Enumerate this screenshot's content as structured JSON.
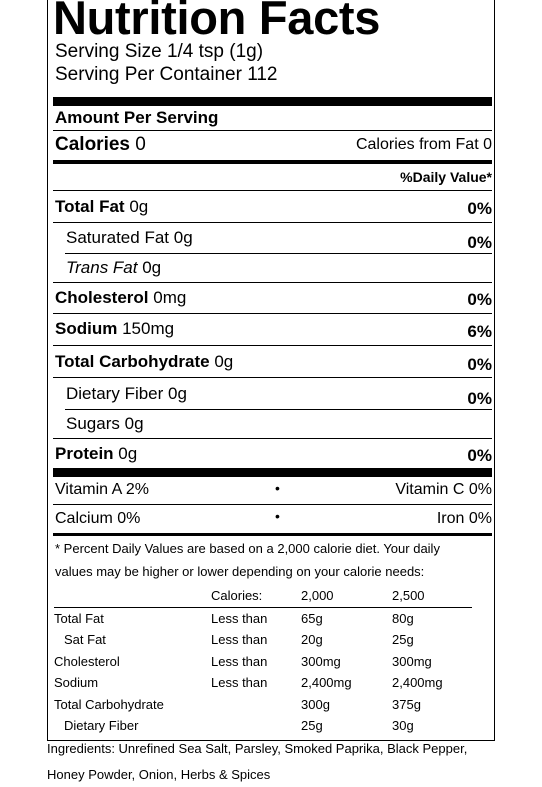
{
  "label": {
    "title": "Nutrition Facts",
    "serving_size": "Serving Size 1/4 tsp (1g)",
    "servings_per_container": "Serving Per Container 112",
    "amount_per_serving": "Amount Per Serving",
    "calories_label": "Calories",
    "calories_value": "0",
    "calories_from_fat": "Calories from Fat 0",
    "daily_value_header": "%Daily Value*",
    "nutrients": [
      {
        "name": "Total Fat",
        "amount": "0g",
        "pct": "0%"
      },
      {
        "name": "Saturated Fat",
        "amount": "0g",
        "pct": "0%"
      },
      {
        "name": "Trans Fat",
        "amount": "0g",
        "pct": ""
      },
      {
        "name": "Cholesterol",
        "amount": "0mg",
        "pct": "0%"
      },
      {
        "name": "Sodium",
        "amount": "150mg",
        "pct": "6%"
      },
      {
        "name": "Total Carbohydrate",
        "amount": "0g",
        "pct": "0%"
      },
      {
        "name": "Dietary Fiber",
        "amount": "0g",
        "pct": "0%"
      },
      {
        "name": "Sugars",
        "amount": "0g",
        "pct": ""
      },
      {
        "name": "Protein",
        "amount": "0g",
        "pct": "0%"
      }
    ],
    "vitamins": {
      "vitamin_a": "Vitamin A 2%",
      "vitamin_c": "Vitamin C 0%",
      "calcium": "Calcium 0%",
      "iron": "Iron 0%",
      "separator": "•"
    },
    "footnote_line1": "* Percent Daily Values are based on a 2,000 calorie diet. Your daily",
    "footnote_line2": "values may be higher or lower depending on your calorie needs:",
    "dv_table": {
      "header": [
        "",
        "Calories:",
        "2,000",
        "2,500"
      ],
      "rows": [
        [
          "Total Fat",
          "Less than",
          "65g",
          "80g"
        ],
        [
          "Sat Fat",
          "Less than",
          "20g",
          "25g"
        ],
        [
          "Cholesterol",
          "Less than",
          "300mg",
          "300mg"
        ],
        [
          "Sodium",
          "Less than",
          "2,400mg",
          "2,400mg"
        ],
        [
          "Total Carbohydrate",
          "",
          "300g",
          "375g"
        ],
        [
          "Dietary Fiber",
          "",
          "25g",
          "30g"
        ]
      ]
    }
  },
  "ingredients_line1": "Ingredients: Unrefined Sea Salt, Parsley, Smoked Paprika, Black Pepper,",
  "ingredients_line2": "Honey Powder, Onion, Herbs & Spices"
}
